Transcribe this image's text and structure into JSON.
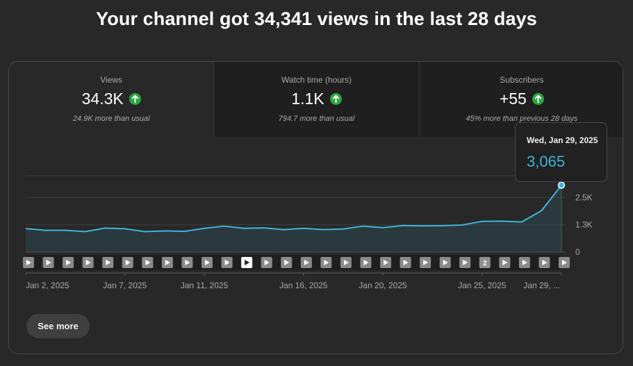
{
  "headline": "Your channel got 34,341 views in the last 28 days",
  "tabs": [
    {
      "label": "Views",
      "value": "34.3K",
      "note": "24.9K more than usual",
      "icon": "arrow-up-circle-icon",
      "active": true
    },
    {
      "label": "Watch time (hours)",
      "value": "1.1K",
      "note": "794.7 more than usual",
      "icon": "arrow-up-circle-icon",
      "active": false
    },
    {
      "label": "Subscribers",
      "value": "+55",
      "note": "45% more than previous 28 days",
      "icon": "arrow-up-circle-icon",
      "active": false
    }
  ],
  "colors": {
    "accent_line": "#41b4d9",
    "up_icon": "#2ba640",
    "background": "#282828"
  },
  "tooltip": {
    "date": "Wed, Jan 29, 2025",
    "value": "3,065"
  },
  "see_more_label": "See more",
  "chart_data": {
    "type": "area",
    "x": [
      "Jan 2",
      "Jan 3",
      "Jan 4",
      "Jan 5",
      "Jan 6",
      "Jan 7",
      "Jan 8",
      "Jan 9",
      "Jan 10",
      "Jan 11",
      "Jan 12",
      "Jan 13",
      "Jan 14",
      "Jan 15",
      "Jan 16",
      "Jan 17",
      "Jan 18",
      "Jan 19",
      "Jan 20",
      "Jan 21",
      "Jan 22",
      "Jan 23",
      "Jan 24",
      "Jan 25",
      "Jan 26",
      "Jan 27",
      "Jan 28",
      "Jan 29"
    ],
    "series": [
      {
        "values": [
          1080,
          1000,
          1000,
          940,
          1100,
          1070,
          940,
          970,
          950,
          1090,
          1190,
          1090,
          1110,
          1030,
          1090,
          1030,
          1060,
          1190,
          1120,
          1220,
          1200,
          1210,
          1240,
          1410,
          1420,
          1380,
          1900,
          3065
        ]
      }
    ],
    "y_ticks": [
      "0",
      "1.3K",
      "2.5K"
    ],
    "y_tick_values": [
      0,
      1250,
      2500
    ],
    "ylim": [
      0,
      3500
    ],
    "x_tick_labels": [
      "Jan 2, 2025",
      "Jan 7, 2025",
      "Jan 11, 2025",
      "Jan 16, 2025",
      "Jan 20, 2025",
      "Jan 25, 2025",
      "Jan 29, ..."
    ],
    "x_tick_days": [
      "Jan 2",
      "Jan 7",
      "Jan 11",
      "Jan 16",
      "Jan 20",
      "Jan 25",
      "Jan 29"
    ],
    "grid": true,
    "highlight_day": "Jan 29",
    "video_markers": [
      {
        "day": "Jan 2",
        "label": ""
      },
      {
        "day": "Jan 3",
        "label": ""
      },
      {
        "day": "Jan 4",
        "label": ""
      },
      {
        "day": "Jan 5",
        "label": ""
      },
      {
        "day": "Jan 6",
        "label": ""
      },
      {
        "day": "Jan 7",
        "label": ""
      },
      {
        "day": "Jan 8",
        "label": ""
      },
      {
        "day": "Jan 9",
        "label": ""
      },
      {
        "day": "Jan 10",
        "label": ""
      },
      {
        "day": "Jan 11",
        "label": ""
      },
      {
        "day": "Jan 12",
        "label": ""
      },
      {
        "day": "Jan 13",
        "label": "",
        "highlight": true
      },
      {
        "day": "Jan 14",
        "label": ""
      },
      {
        "day": "Jan 15",
        "label": ""
      },
      {
        "day": "Jan 16",
        "label": ""
      },
      {
        "day": "Jan 17",
        "label": ""
      },
      {
        "day": "Jan 18",
        "label": ""
      },
      {
        "day": "Jan 19",
        "label": ""
      },
      {
        "day": "Jan 20",
        "label": ""
      },
      {
        "day": "Jan 21",
        "label": ""
      },
      {
        "day": "Jan 22",
        "label": ""
      },
      {
        "day": "Jan 23",
        "label": ""
      },
      {
        "day": "Jan 24",
        "label": ""
      },
      {
        "day": "Jan 25",
        "label": "2"
      },
      {
        "day": "Jan 26",
        "label": ""
      },
      {
        "day": "Jan 27",
        "label": ""
      },
      {
        "day": "Jan 28",
        "label": ""
      },
      {
        "day": "Jan 29",
        "label": ""
      }
    ]
  }
}
